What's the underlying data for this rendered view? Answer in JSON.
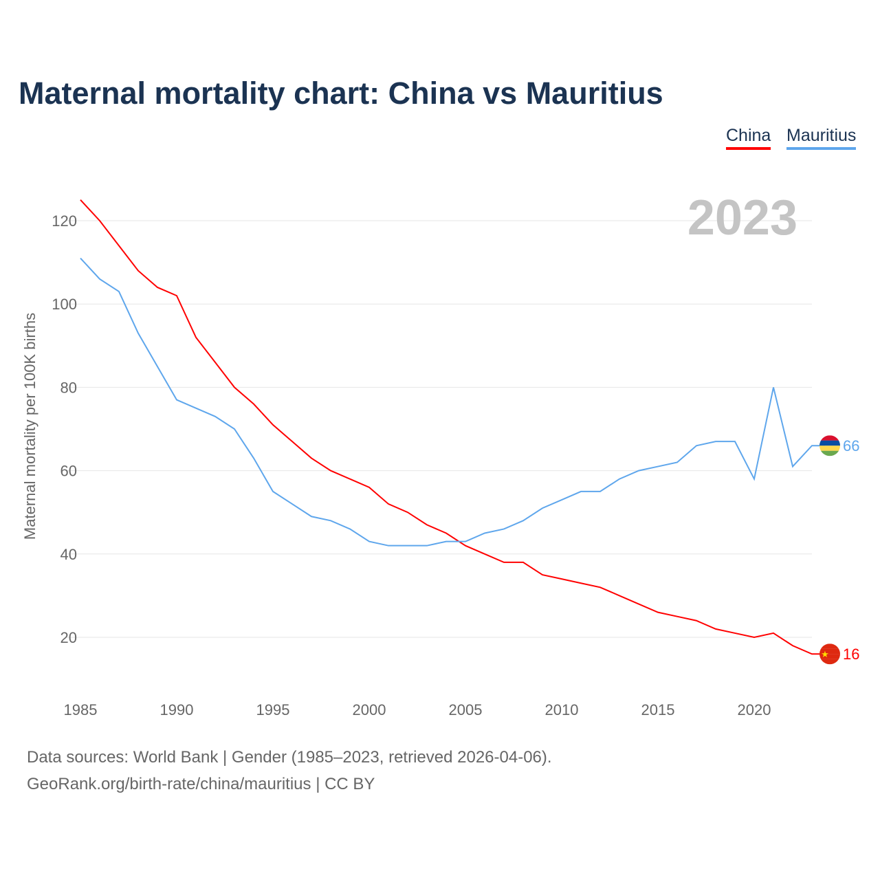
{
  "title": "Maternal mortality chart: China vs Mauritius",
  "legend": [
    {
      "name": "China",
      "color": "#ff0000"
    },
    {
      "name": "Mauritius",
      "color": "#5ea6ec"
    }
  ],
  "year_label": "2023",
  "footer": {
    "line1": "Data sources: World Bank | Gender (1985–2023, retrieved 2026-04-06).",
    "line2": "GeoRank.org/birth-rate/china/mauritius | CC BY"
  },
  "chart_data": {
    "type": "line",
    "title": "Maternal mortality chart: China vs Mauritius",
    "xlabel": "",
    "ylabel": "Maternal mortality per 100K births",
    "xlim": [
      1985,
      2023
    ],
    "ylim": [
      10,
      130
    ],
    "xticks": [
      1985,
      1990,
      1995,
      2000,
      2005,
      2010,
      2015,
      2020
    ],
    "yticks": [
      20,
      40,
      60,
      80,
      100,
      120
    ],
    "grid": true,
    "legend_position": "top-right",
    "x": [
      1985,
      1986,
      1987,
      1988,
      1989,
      1990,
      1991,
      1992,
      1993,
      1994,
      1995,
      1996,
      1997,
      1998,
      1999,
      2000,
      2001,
      2002,
      2003,
      2004,
      2005,
      2006,
      2007,
      2008,
      2009,
      2010,
      2011,
      2012,
      2013,
      2014,
      2015,
      2016,
      2017,
      2018,
      2019,
      2020,
      2021,
      2022,
      2023
    ],
    "series": [
      {
        "name": "China",
        "color": "#ff0000",
        "end_label": "16",
        "values": [
          125,
          120,
          114,
          108,
          104,
          102,
          92,
          86,
          80,
          76,
          71,
          67,
          63,
          60,
          58,
          56,
          52,
          50,
          47,
          45,
          42,
          40,
          38,
          38,
          35,
          34,
          33,
          32,
          30,
          28,
          26,
          25,
          24,
          22,
          21,
          20,
          21,
          18,
          16
        ]
      },
      {
        "name": "Mauritius",
        "color": "#5ea6ec",
        "end_label": "66",
        "values": [
          111,
          106,
          103,
          93,
          85,
          77,
          75,
          73,
          70,
          63,
          55,
          52,
          49,
          48,
          46,
          43,
          42,
          42,
          42,
          43,
          43,
          45,
          46,
          48,
          51,
          53,
          55,
          55,
          58,
          60,
          61,
          62,
          66,
          67,
          67,
          58,
          80,
          61,
          66
        ]
      }
    ]
  }
}
